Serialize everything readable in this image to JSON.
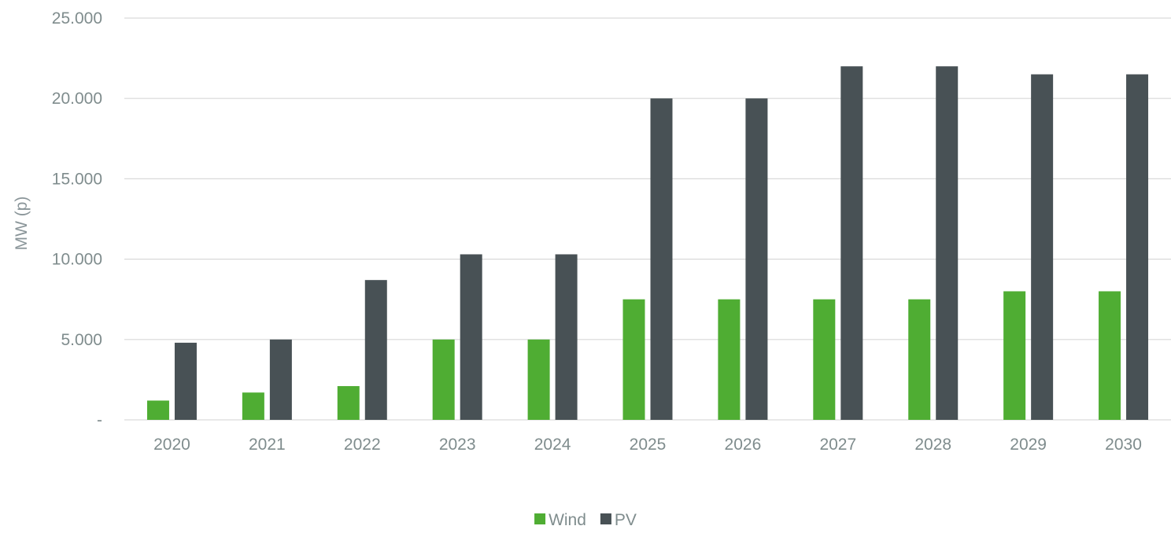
{
  "chart_data": {
    "type": "bar",
    "title": "",
    "xlabel": "",
    "ylabel": "MW (p)",
    "categories": [
      "2020",
      "2021",
      "2022",
      "2023",
      "2024",
      "2025",
      "2026",
      "2027",
      "2028",
      "2029",
      "2030"
    ],
    "series": [
      {
        "name": "Wind",
        "color": "#4fad33",
        "values": [
          1200,
          1700,
          2100,
          5000,
          5000,
          7500,
          7500,
          7500,
          7500,
          8000,
          8000
        ]
      },
      {
        "name": "PV",
        "color": "#485155",
        "values": [
          4800,
          5000,
          8700,
          10300,
          10300,
          20000,
          20000,
          22000,
          22000,
          21500,
          21500
        ]
      }
    ],
    "ylim": [
      0,
      25000
    ],
    "yticks": [
      0,
      5000,
      10000,
      15000,
      20000,
      25000
    ],
    "ytick_labels": [
      "-",
      "5.000",
      "10.000",
      "15.000",
      "20.000",
      "25.000"
    ],
    "grid": true,
    "legend_position": "bottom-center"
  }
}
